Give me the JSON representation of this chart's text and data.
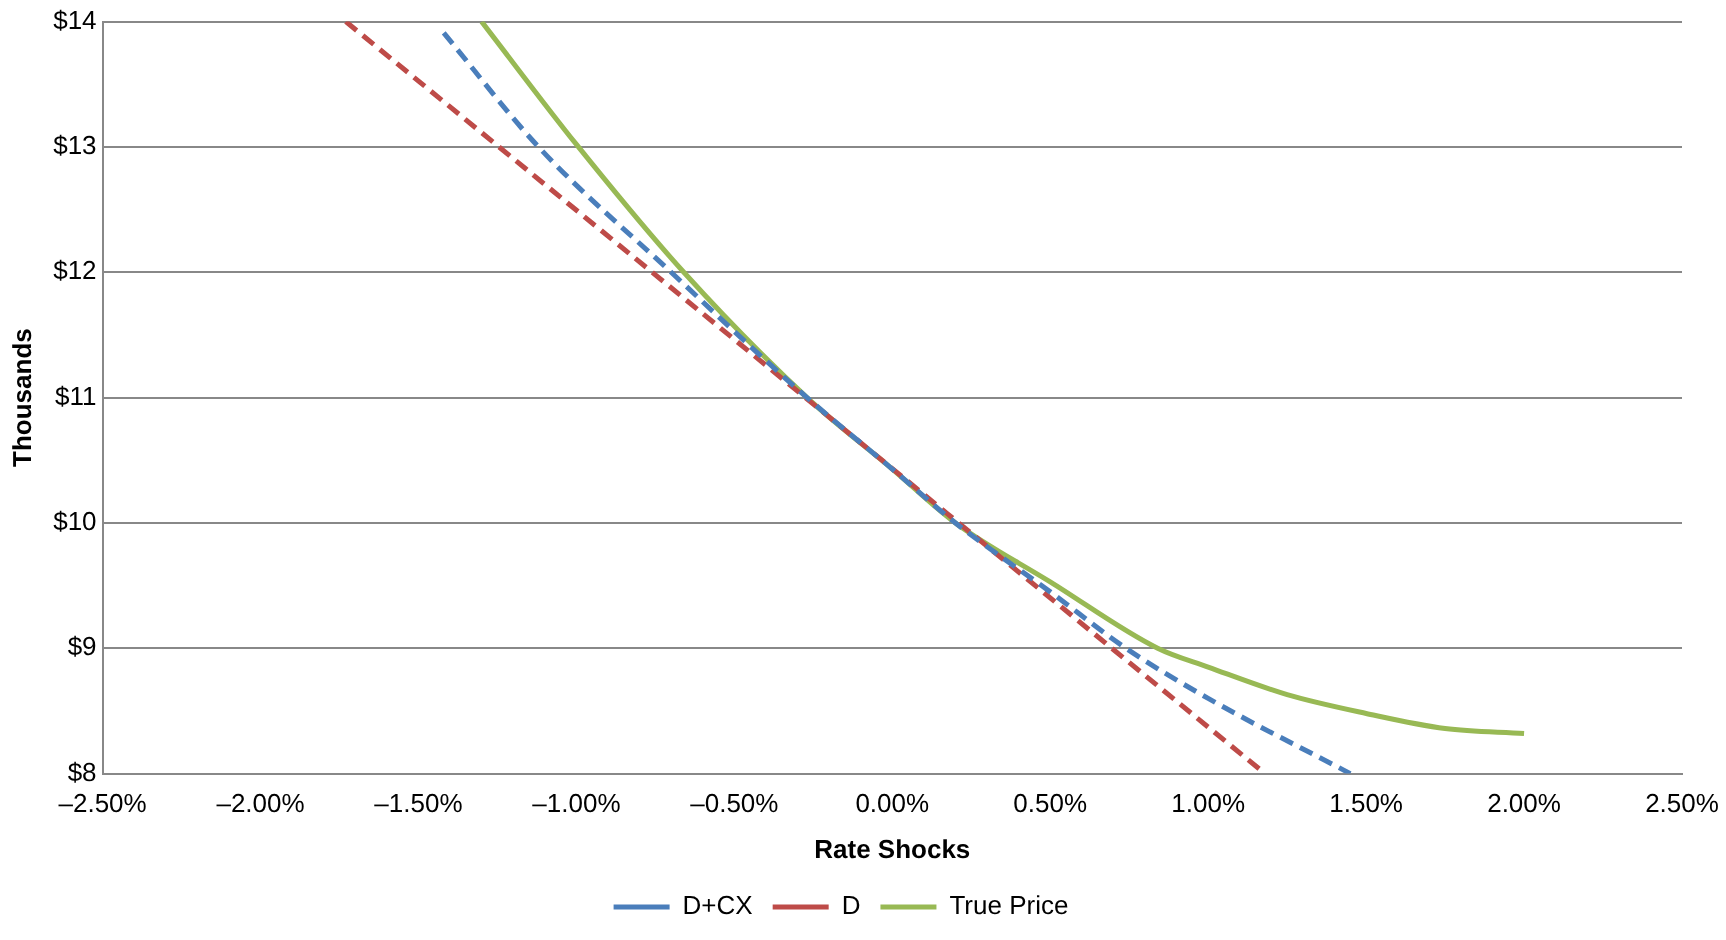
{
  "chart_data": {
    "type": "line",
    "xlabel": "Rate Shocks",
    "ylabel": "Thousands",
    "xlim": [
      -2.5,
      2.5
    ],
    "xticks": [
      {
        "value": -2.5,
        "label": "–2.50%"
      },
      {
        "value": -2,
        "label": "–2.00%"
      },
      {
        "value": -1.5,
        "label": "–1.50%"
      },
      {
        "value": -1,
        "label": "–1.00%"
      },
      {
        "value": -0.5,
        "label": "–0.50%"
      },
      {
        "value": 0,
        "label": "0.00%"
      },
      {
        "value": 0.5,
        "label": "0.50%"
      },
      {
        "value": 1,
        "label": "1.00%"
      },
      {
        "value": 1.5,
        "label": "1.50%"
      },
      {
        "value": 2,
        "label": "2.00%"
      },
      {
        "value": 2.5,
        "label": "2.50%"
      }
    ],
    "ylim": [
      8,
      14
    ],
    "yticks": [
      {
        "value": 8,
        "label": "$8"
      },
      {
        "value": 9,
        "label": "$9"
      },
      {
        "value": 10,
        "label": "$10"
      },
      {
        "value": 11,
        "label": "$11"
      },
      {
        "value": 12,
        "label": "$12"
      },
      {
        "value": 13,
        "label": "$13"
      },
      {
        "value": 14,
        "label": "$14"
      }
    ],
    "grid": "y",
    "legend": "bottom",
    "marker": "none",
    "series": [
      {
        "name": "D+CX",
        "color": "#4a7ebb",
        "line_style": "dashed",
        "x": [
          -1.42,
          -1.12,
          -0.7,
          -0.27,
          0,
          0.2,
          0.5,
          0.74,
          1.0,
          1.45
        ],
        "values": [
          13.91,
          13,
          12,
          11,
          10.43,
          10,
          9.45,
          9,
          8.6,
          8.0
        ]
      },
      {
        "name": "D",
        "color": "#be4b48",
        "line_style": "dashed",
        "x": [
          -1.73,
          1.18
        ],
        "values": [
          14,
          8
        ]
      },
      {
        "name": "True Price",
        "color": "#98b954",
        "line_style": "solid",
        "x": [
          -1.3,
          -1.0,
          -0.66,
          -0.27,
          0,
          0.2,
          0.5,
          0.84,
          1.0,
          1.25,
          1.5,
          1.75,
          2.0
        ],
        "values": [
          14,
          13.02,
          12,
          11,
          10.43,
          10,
          9.53,
          9,
          8.85,
          8.63,
          8.48,
          8.36,
          8.32
        ]
      }
    ]
  }
}
